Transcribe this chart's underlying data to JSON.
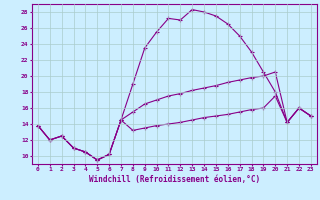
{
  "xlabel": "Windchill (Refroidissement éolien,°C)",
  "bg_color": "#cceeff",
  "line_color": "#880088",
  "grid_color": "#aacccc",
  "xlim": [
    -0.5,
    23.5
  ],
  "ylim": [
    9,
    29
  ],
  "xticks": [
    0,
    1,
    2,
    3,
    4,
    5,
    6,
    7,
    8,
    9,
    10,
    11,
    12,
    13,
    14,
    15,
    16,
    17,
    18,
    19,
    20,
    21,
    22,
    23
  ],
  "yticks": [
    10,
    12,
    14,
    16,
    18,
    20,
    22,
    24,
    26,
    28
  ],
  "line1_x": [
    0,
    1,
    2,
    3,
    4,
    5,
    6,
    7,
    8,
    9,
    10,
    11,
    12,
    13,
    14,
    15,
    16,
    17,
    18,
    19,
    20,
    21,
    22,
    23
  ],
  "line1_y": [
    13.8,
    12.0,
    12.5,
    11.0,
    10.5,
    9.5,
    10.2,
    14.5,
    19.0,
    23.5,
    25.5,
    27.2,
    27.0,
    28.3,
    28.0,
    27.5,
    26.5,
    25.0,
    23.0,
    20.5,
    18.0,
    14.2,
    16.0,
    15.0
  ],
  "line2_x": [
    0,
    1,
    2,
    3,
    4,
    5,
    6,
    7,
    8,
    9,
    10,
    11,
    12,
    13,
    14,
    15,
    16,
    17,
    18,
    19,
    20,
    21,
    22,
    23
  ],
  "line2_y": [
    13.8,
    12.0,
    12.5,
    11.0,
    10.5,
    9.5,
    10.2,
    14.5,
    15.5,
    16.5,
    17.0,
    17.5,
    17.8,
    18.2,
    18.5,
    18.8,
    19.2,
    19.5,
    19.8,
    20.0,
    20.5,
    14.2,
    16.0,
    15.0
  ],
  "line3_x": [
    0,
    1,
    2,
    3,
    4,
    5,
    6,
    7,
    8,
    9,
    10,
    11,
    12,
    13,
    14,
    15,
    16,
    17,
    18,
    19,
    20,
    21,
    22,
    23
  ],
  "line3_y": [
    13.8,
    12.0,
    12.5,
    11.0,
    10.5,
    9.5,
    10.2,
    14.5,
    13.2,
    13.5,
    13.8,
    14.0,
    14.2,
    14.5,
    14.8,
    15.0,
    15.2,
    15.5,
    15.8,
    16.0,
    17.5,
    14.2,
    16.0,
    15.0
  ]
}
